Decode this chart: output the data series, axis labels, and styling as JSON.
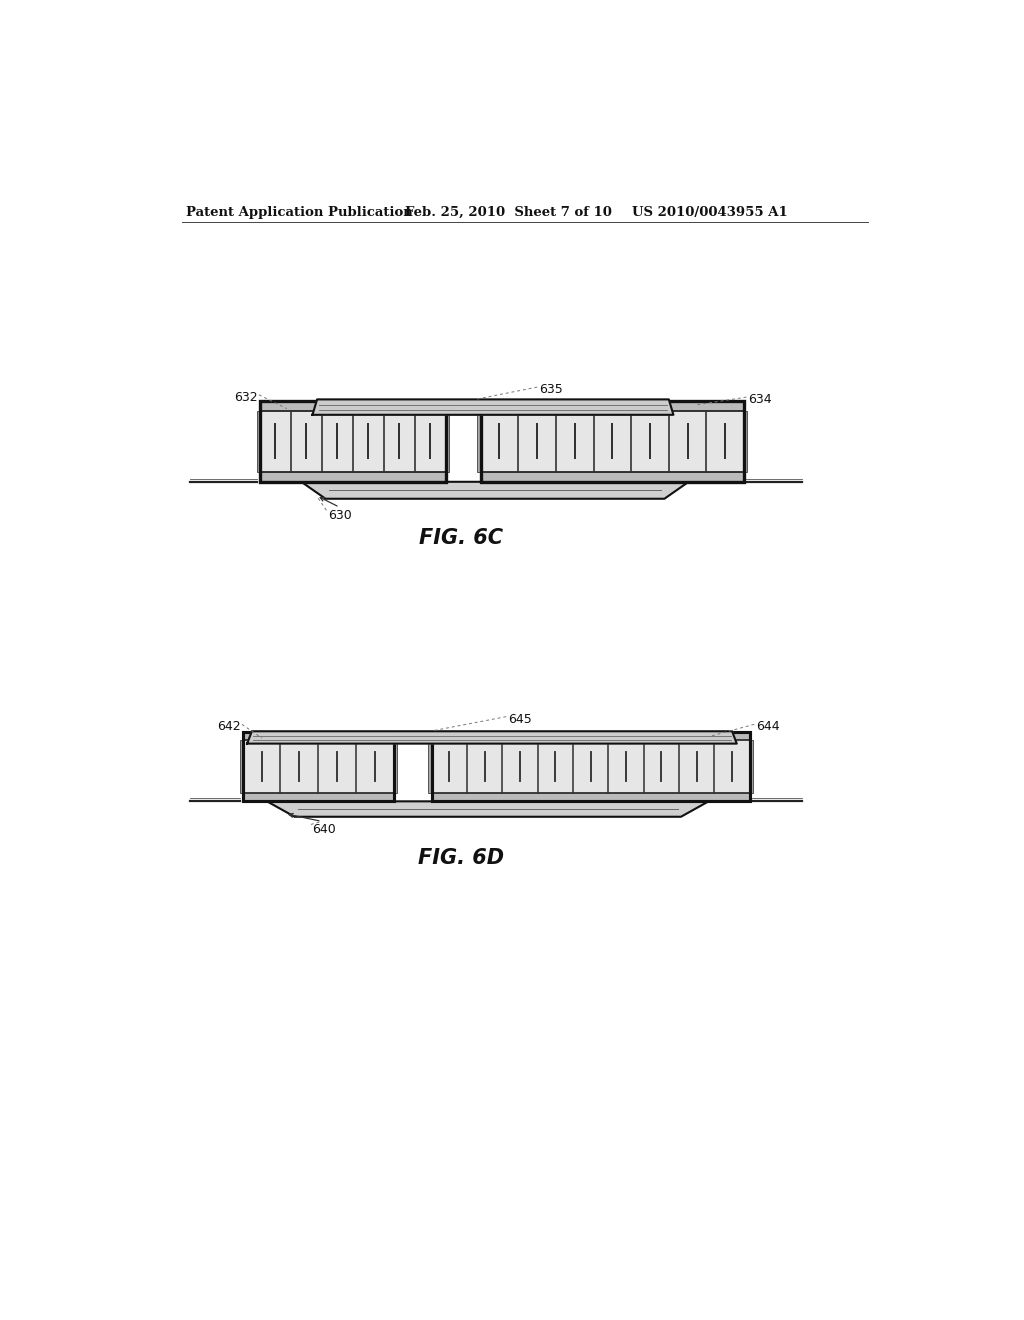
{
  "bg_color": "#ffffff",
  "header_left": "Patent Application Publication",
  "header_mid": "Feb. 25, 2010  Sheet 7 of 10",
  "header_right": "US 2010/0043955 A1",
  "fig6c_label": "FIG. 6C",
  "fig6d_label": "FIG. 6D",
  "ref630": "630",
  "ref632": "632",
  "ref634": "634",
  "ref635": "635",
  "ref640": "640",
  "ref642": "642",
  "ref644": "644",
  "ref645": "645"
}
